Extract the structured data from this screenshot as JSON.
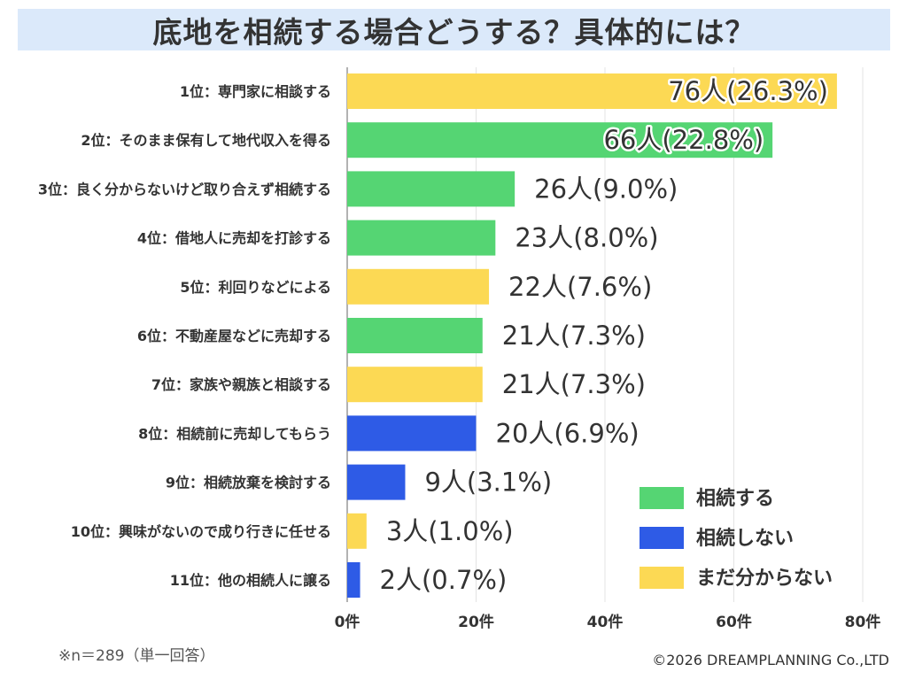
{
  "title": "底地を相続する場合どうする？具体的には？",
  "footnote": "※n＝289（単一回答）",
  "copyright": "©2026 DREAMPLANNING Co.,LTD",
  "colors": {
    "inherit": "#55d573",
    "not_inherit": "#2e5be6",
    "undecided": "#fcd954",
    "grid": "#e3e3e3",
    "axis": "#999999",
    "text": "#333333"
  },
  "chart_data": {
    "type": "bar",
    "orientation": "horizontal",
    "categories": [
      "1位：専門家に相談する",
      "2位：そのまま保有して地代収入を得る",
      "3位：良く分からないけど取り合えず相続する",
      "4位：借地人に売却を打診する",
      "5位：利回りなどによる",
      "6位：不動産屋などに売却する",
      "7位：家族や親族と相談する",
      "8位：相続前に売却してもらう",
      "9位：相続放棄を検討する",
      "10位：興味がないので成り行きに任せる",
      "11位：他の相続人に譲る"
    ],
    "values": [
      76,
      66,
      26,
      23,
      22,
      21,
      21,
      20,
      9,
      3,
      2
    ],
    "groups": [
      "undecided",
      "inherit",
      "inherit",
      "inherit",
      "undecided",
      "inherit",
      "undecided",
      "not_inherit",
      "not_inherit",
      "undecided",
      "not_inherit"
    ],
    "data_labels": [
      "76人(26.3%)",
      "66人(22.8%)",
      "26人(9.0%)",
      "23人(8.0%)",
      "22人(7.6%)",
      "21人(7.3%)",
      "21人(7.3%)",
      "20人(6.9%)",
      "9人(3.1%)",
      "3人(1.0%)",
      "2人(0.7%)"
    ],
    "xlim": [
      0,
      80
    ],
    "ticks": [
      0,
      20,
      40,
      60,
      80
    ],
    "tick_labels": [
      "0件",
      "20件",
      "40件",
      "60件",
      "80件"
    ],
    "grid": true,
    "legend": {
      "position": "bottom-right",
      "items": [
        {
          "key": "inherit",
          "label": "相続する"
        },
        {
          "key": "not_inherit",
          "label": "相続しない"
        },
        {
          "key": "undecided",
          "label": "まだ分からない"
        }
      ]
    }
  }
}
